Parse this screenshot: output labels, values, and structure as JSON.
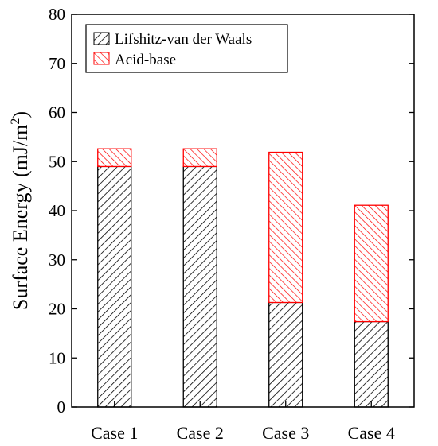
{
  "chart_data": {
    "type": "bar",
    "stacked": true,
    "categories": [
      "Case 1",
      "Case 2",
      "Case 3",
      "Case 4"
    ],
    "series": [
      {
        "name": "Lifshitz-van der Waals",
        "values": [
          49.0,
          49.0,
          21.3,
          17.4
        ],
        "color": "#000000"
      },
      {
        "name": "Acid-base",
        "values": [
          3.6,
          3.6,
          30.6,
          23.7
        ],
        "color": "#ff0000"
      }
    ],
    "ylabel": "Surface Energy (mJ/m",
    "ylabel_sup": "2",
    "ylabel_end": ")",
    "ylim": [
      0,
      80
    ],
    "yticks": [
      0,
      10,
      20,
      30,
      40,
      50,
      60,
      70,
      80
    ],
    "grid": false,
    "legend_position": "top-left"
  }
}
